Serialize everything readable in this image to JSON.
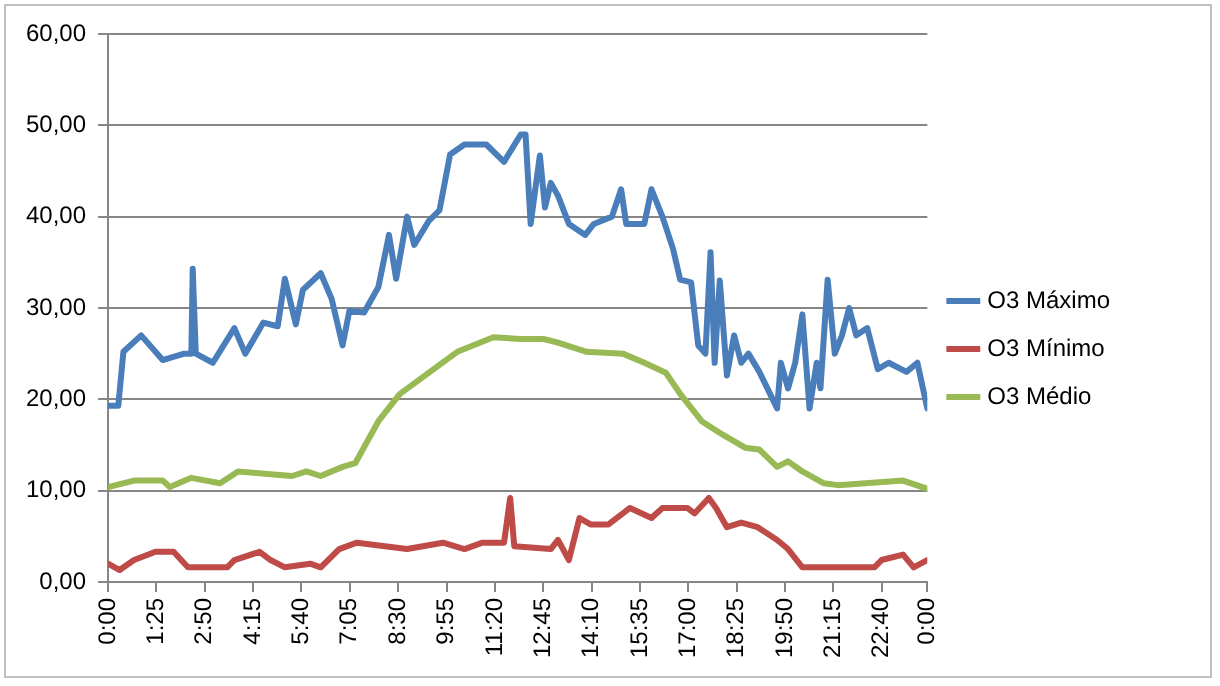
{
  "chart_data": {
    "type": "line",
    "xlim": [
      0,
      24
    ],
    "ylim": [
      0,
      60
    ],
    "xticks": [
      {
        "value": 0,
        "label": "0:00"
      },
      {
        "value": 1.4167,
        "label": "1:25"
      },
      {
        "value": 2.8333,
        "label": "2:50"
      },
      {
        "value": 4.25,
        "label": "4:15"
      },
      {
        "value": 5.6667,
        "label": "5:40"
      },
      {
        "value": 7.0833,
        "label": "7:05"
      },
      {
        "value": 8.5,
        "label": "8:30"
      },
      {
        "value": 9.9167,
        "label": "9:55"
      },
      {
        "value": 11.3333,
        "label": "11:20"
      },
      {
        "value": 12.75,
        "label": "12:45"
      },
      {
        "value": 14.1667,
        "label": "14:10"
      },
      {
        "value": 15.5833,
        "label": "15:35"
      },
      {
        "value": 17,
        "label": "17:00"
      },
      {
        "value": 18.4167,
        "label": "18:25"
      },
      {
        "value": 19.8333,
        "label": "19:50"
      },
      {
        "value": 21.25,
        "label": "21:15"
      },
      {
        "value": 22.6667,
        "label": "22:40"
      },
      {
        "value": 24,
        "label": "0:00"
      }
    ],
    "yticks": [
      {
        "value": 0,
        "label": "0,00"
      },
      {
        "value": 10,
        "label": "10,00"
      },
      {
        "value": 20,
        "label": "20,00"
      },
      {
        "value": 30,
        "label": "30,00"
      },
      {
        "value": 40,
        "label": "40,00"
      },
      {
        "value": 50,
        "label": "50,00"
      },
      {
        "value": 60,
        "label": "60,00"
      }
    ],
    "grid": "y",
    "legend": "right",
    "marker": "none",
    "line_style": "solid",
    "series": [
      {
        "name": "O3 Máximo",
        "color": "#4a7ebb",
        "x": [
          0,
          0.3,
          0.45,
          0.97,
          1.6,
          2.23,
          2.44,
          2.48,
          2.57,
          3.07,
          3.7,
          4.02,
          4.55,
          4.97,
          5.18,
          5.5,
          5.71,
          6.23,
          6.55,
          6.87,
          7.07,
          7.5,
          7.92,
          8.23,
          8.44,
          8.76,
          8.97,
          9.39,
          9.71,
          10.02,
          10.44,
          11.08,
          11.6,
          12.09,
          12.23,
          12.38,
          12.65,
          12.8,
          12.97,
          13.18,
          13.5,
          13.98,
          14.23,
          14.76,
          15.03,
          15.18,
          15.71,
          15.92,
          16.24,
          16.55,
          16.76,
          17.08,
          17.29,
          17.5,
          17.65,
          17.77,
          17.92,
          18.13,
          18.34,
          18.55,
          18.76,
          19.08,
          19.6,
          19.71,
          19.92,
          20.13,
          20.34,
          20.55,
          20.76,
          20.87,
          21.08,
          21.29,
          21.5,
          21.71,
          21.92,
          22.24,
          22.55,
          22.87,
          23.39,
          23.71,
          24
        ],
        "values": [
          19.3,
          19.3,
          25.2,
          27,
          24.3,
          25,
          25,
          34.3,
          25,
          24,
          27.8,
          25,
          28.4,
          28,
          33.2,
          28.2,
          32,
          33.8,
          31,
          25.9,
          29.7,
          29.5,
          32.3,
          38,
          33.2,
          40,
          36.9,
          39.5,
          40.7,
          46.8,
          47.9,
          47.9,
          46,
          49,
          49,
          39.2,
          46.7,
          41,
          43.7,
          42.3,
          39.2,
          38,
          39.2,
          40,
          43,
          39.2,
          39.2,
          43,
          40,
          36.5,
          33.1,
          32.8,
          25.9,
          25,
          36.1,
          24,
          33,
          22.6,
          27,
          24,
          25,
          23,
          19,
          24,
          21.2,
          24,
          29.3,
          19,
          24,
          21.2,
          33.1,
          25,
          27,
          30,
          27,
          27.8,
          23.3,
          24,
          23,
          24,
          19
        ]
      },
      {
        "name": "O3 Mínimo",
        "color": "#be4b48",
        "x": [
          0,
          0.34,
          0.76,
          1.39,
          1.92,
          2.34,
          3.49,
          3.7,
          4.44,
          4.76,
          5.18,
          5.92,
          6.23,
          6.77,
          7.29,
          8.76,
          9.81,
          10.44,
          10.97,
          11.6,
          11.78,
          11.9,
          12.97,
          13.18,
          13.5,
          13.81,
          14.13,
          14.66,
          15.29,
          15.92,
          16.24,
          16.97,
          17.18,
          17.6,
          17.81,
          18.13,
          18.55,
          19.03,
          19.6,
          19.92,
          20.34,
          22.45,
          22.66,
          23.29,
          23.6,
          24
        ],
        "values": [
          2,
          1.3,
          2.4,
          3.3,
          3.3,
          1.6,
          1.6,
          2.4,
          3.3,
          2.4,
          1.6,
          2,
          1.6,
          3.6,
          4.3,
          3.6,
          4.3,
          3.6,
          4.3,
          4.3,
          9.2,
          3.9,
          3.6,
          4.6,
          2.4,
          7,
          6.3,
          6.3,
          8.1,
          7,
          8.1,
          8.1,
          7.5,
          9.2,
          8.1,
          6,
          6.5,
          6,
          4.6,
          3.6,
          1.6,
          1.6,
          2.4,
          3,
          1.6,
          2.4
        ]
      },
      {
        "name": "O3 Médio",
        "color": "#98b954",
        "x": [
          0,
          0.76,
          1.6,
          1.81,
          2.44,
          3.28,
          3.81,
          4.76,
          5.39,
          5.81,
          6.23,
          6.87,
          7.24,
          7.92,
          8.55,
          9.39,
          10.23,
          11.29,
          12.09,
          12.76,
          13.18,
          14.02,
          15.08,
          15.71,
          16.34,
          16.76,
          17.39,
          18.02,
          18.66,
          19.08,
          19.6,
          19.92,
          20.34,
          20.97,
          21.39,
          23.29,
          24
        ],
        "values": [
          10.4,
          11.1,
          11.1,
          10.4,
          11.4,
          10.8,
          12.1,
          11.8,
          11.6,
          12.1,
          11.6,
          12.6,
          13,
          17.6,
          20.6,
          22.9,
          25.2,
          26.8,
          26.6,
          26.6,
          26.2,
          25.2,
          25,
          24,
          22.9,
          20.6,
          17.6,
          16.1,
          14.7,
          14.5,
          12.6,
          13.2,
          12.1,
          10.8,
          10.6,
          11.1,
          10.2
        ]
      }
    ]
  }
}
